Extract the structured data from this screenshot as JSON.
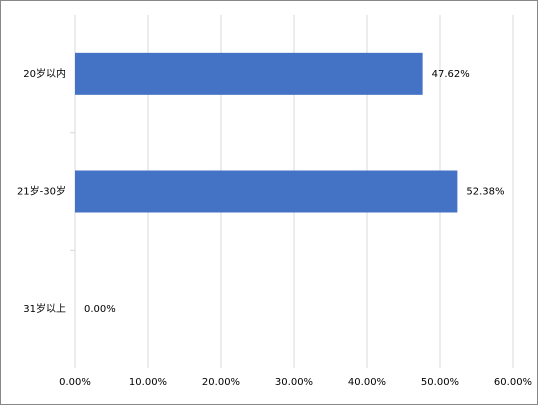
{
  "chart_data": {
    "type": "hbar",
    "categories": [
      "20岁以内",
      "21岁-30岁",
      "31岁以上"
    ],
    "values": [
      47.62,
      52.38,
      0
    ],
    "value_labels": [
      "47.62%",
      "52.38%",
      "0.00%"
    ],
    "color": "#4472c4",
    "xlim": [
      0,
      60
    ],
    "xticks": [
      {
        "value": 0,
        "label": "0.00%"
      },
      {
        "value": 10,
        "label": "10.00%"
      },
      {
        "value": 20,
        "label": "20.00%"
      },
      {
        "value": 30,
        "label": "30.00%"
      },
      {
        "value": 40,
        "label": "40.00%"
      },
      {
        "value": 50,
        "label": "50.00%"
      },
      {
        "value": 60,
        "label": "60.00%"
      }
    ],
    "grid": true
  }
}
